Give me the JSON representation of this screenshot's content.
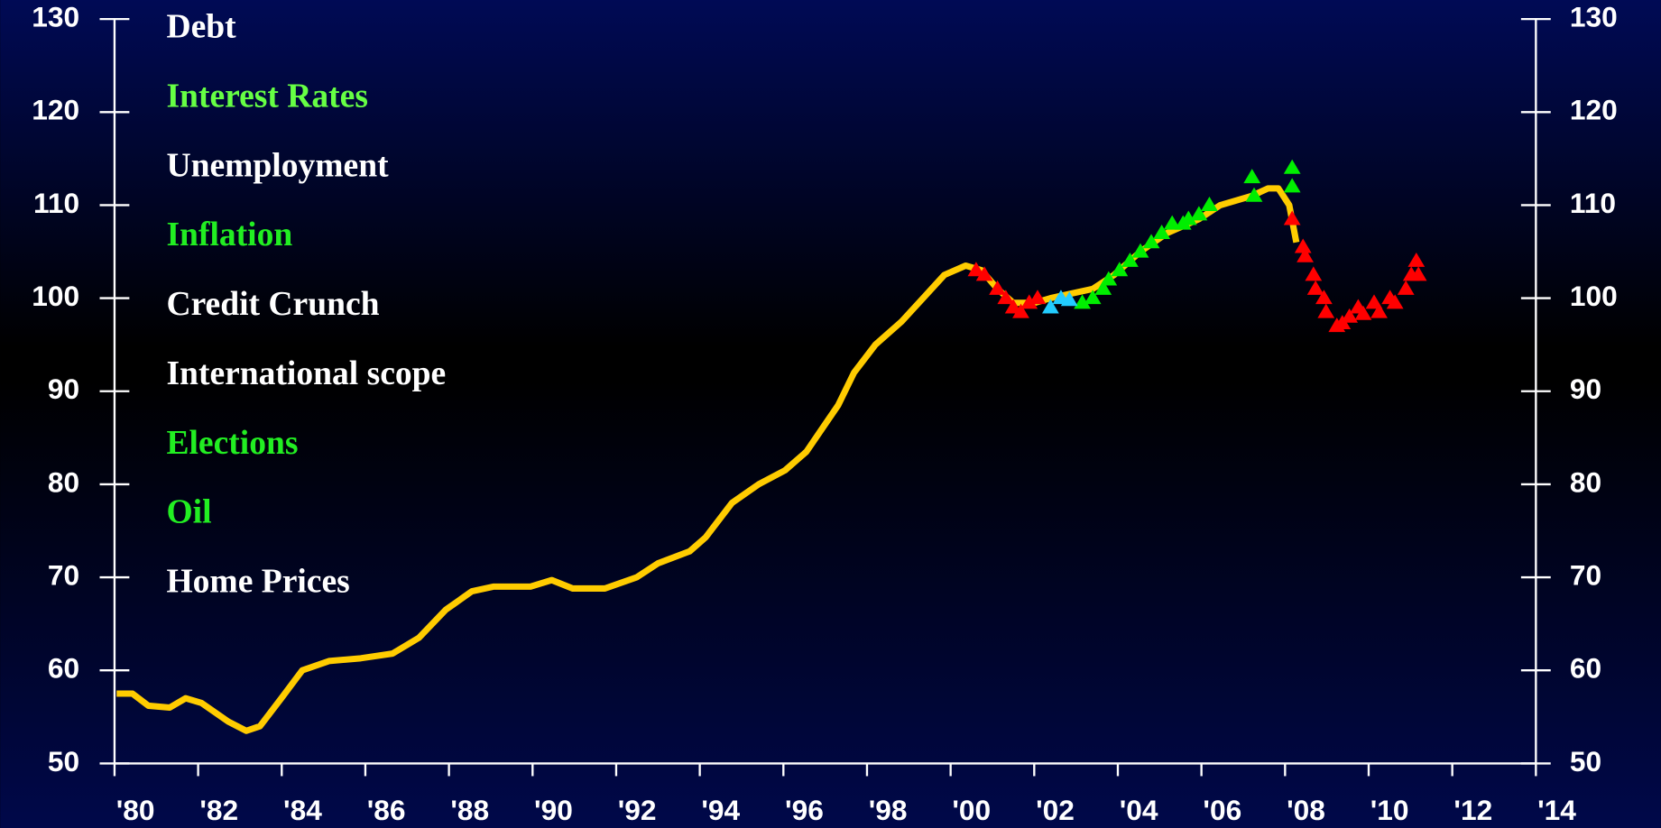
{
  "chart_data": {
    "type": "line",
    "annotations": [
      {
        "text": "Debt",
        "color": "#ffffff"
      },
      {
        "text": "Interest Rates",
        "color": "#66ff44"
      },
      {
        "text": "Unemployment",
        "color": "#ffffff"
      },
      {
        "text": "Inflation",
        "color": "#22ee22"
      },
      {
        "text": "Credit Crunch",
        "color": "#ffffff"
      },
      {
        "text": "International scope",
        "color": "#ffffff"
      },
      {
        "text": "Elections",
        "color": "#22ee22"
      },
      {
        "text": "Oil",
        "color": "#22ee22"
      },
      {
        "text": "Home Prices",
        "color": "#ffffff"
      }
    ],
    "xlim": [
      1980,
      2014
    ],
    "xticks": [
      {
        "value": 1980,
        "label": "'80"
      },
      {
        "value": 1982,
        "label": "'82"
      },
      {
        "value": 1984,
        "label": "'84"
      },
      {
        "value": 1986,
        "label": "'86"
      },
      {
        "value": 1988,
        "label": "'88"
      },
      {
        "value": 1990,
        "label": "'90"
      },
      {
        "value": 1992,
        "label": "'92"
      },
      {
        "value": 1994,
        "label": "'94"
      },
      {
        "value": 1996,
        "label": "'96"
      },
      {
        "value": 1998,
        "label": "'98"
      },
      {
        "value": 2000,
        "label": "'00"
      },
      {
        "value": 2002,
        "label": "'02"
      },
      {
        "value": 2004,
        "label": "'04"
      },
      {
        "value": 2006,
        "label": "'06"
      },
      {
        "value": 2008,
        "label": "'08"
      },
      {
        "value": 2010,
        "label": "'10"
      },
      {
        "value": 2012,
        "label": "'12"
      },
      {
        "value": 2014,
        "label": "'14"
      }
    ],
    "ylim": [
      50,
      130
    ],
    "yticks": [
      50,
      60,
      70,
      80,
      90,
      100,
      110,
      120,
      130
    ],
    "y2lim": [
      50,
      130
    ],
    "y2ticks": [
      50,
      60,
      70,
      80,
      90,
      100,
      110,
      120,
      130
    ],
    "line": {
      "color": "#ffcc00",
      "x": [
        1980.05,
        1980.43,
        1980.81,
        1981.32,
        1981.7,
        1982.08,
        1982.72,
        1983.15,
        1983.48,
        1983.99,
        1984.49,
        1985.13,
        1985.89,
        1986.65,
        1987.28,
        1987.92,
        1988.55,
        1989.06,
        1989.95,
        1990.46,
        1990.96,
        1991.73,
        1992.49,
        1993.0,
        1993.76,
        1994.14,
        1994.77,
        1995.41,
        1996.04,
        1996.55,
        1996.93,
        1997.31,
        1997.69,
        1998.2,
        1998.83,
        1999.34,
        1999.85,
        2000.36,
        2000.74,
        2001.12,
        2001.5,
        2002.01,
        2002.39,
        2002.89,
        2003.4,
        2003.91,
        2004.54,
        2005.18,
        2005.94,
        2006.45,
        2007.21,
        2007.59,
        2007.84,
        2008.1,
        2008.27
      ],
      "values": [
        57.5,
        57.5,
        56.2,
        56,
        57,
        56.5,
        54.5,
        53.5,
        54,
        57,
        60,
        61,
        61.3,
        61.8,
        63.5,
        66.5,
        68.5,
        69,
        69,
        69.7,
        68.8,
        68.8,
        70,
        71.5,
        72.8,
        74.3,
        78,
        80,
        81.5,
        83.5,
        86,
        88.5,
        92,
        95,
        97.5,
        100,
        102.5,
        103.5,
        103,
        101,
        99.5,
        99.5,
        100,
        100.5,
        101,
        102.5,
        105,
        107,
        108.5,
        110,
        111,
        111.8,
        111.8,
        110,
        106
      ]
    },
    "series": [
      {
        "color": "#ff0000",
        "x": [
          2000.61,
          2000.81,
          2001.12,
          2001.32,
          2001.5,
          2001.68,
          2001.88,
          2002.08,
          2008.17,
          2008.43,
          2008.48,
          2008.68,
          2008.73,
          2008.93,
          2008.98,
          2009.24,
          2009.37,
          2009.54,
          2009.75,
          2009.87,
          2010.13,
          2010.25,
          2010.51,
          2010.63,
          2010.89,
          2011.02,
          2011.14,
          2011.19
        ],
        "values": [
          103,
          102.5,
          101,
          100,
          99,
          98.5,
          99.5,
          100,
          108.5,
          105.5,
          104.5,
          102.5,
          101,
          100,
          98.5,
          97,
          97.3,
          98,
          99,
          98.3,
          99.5,
          98.5,
          100,
          99.5,
          101,
          102.5,
          104,
          102.5
        ]
      },
      {
        "color": "#00ee00",
        "x": [
          2003.15,
          2003.4,
          2003.65,
          2003.78,
          2004.04,
          2004.29,
          2004.54,
          2004.8,
          2005.05,
          2005.3,
          2005.56,
          2005.69,
          2005.94,
          2006.19,
          2007.21,
          2007.26,
          2008.17,
          2008.17
        ],
        "values": [
          99.5,
          100,
          101,
          102,
          103,
          104,
          105,
          106,
          107,
          108,
          108,
          108.5,
          109,
          110,
          113,
          111,
          114,
          112
        ]
      },
      {
        "color": "#22ccff",
        "x": [
          2002.39,
          2002.64,
          2002.84
        ],
        "values": [
          99,
          100,
          99.8
        ]
      }
    ]
  }
}
